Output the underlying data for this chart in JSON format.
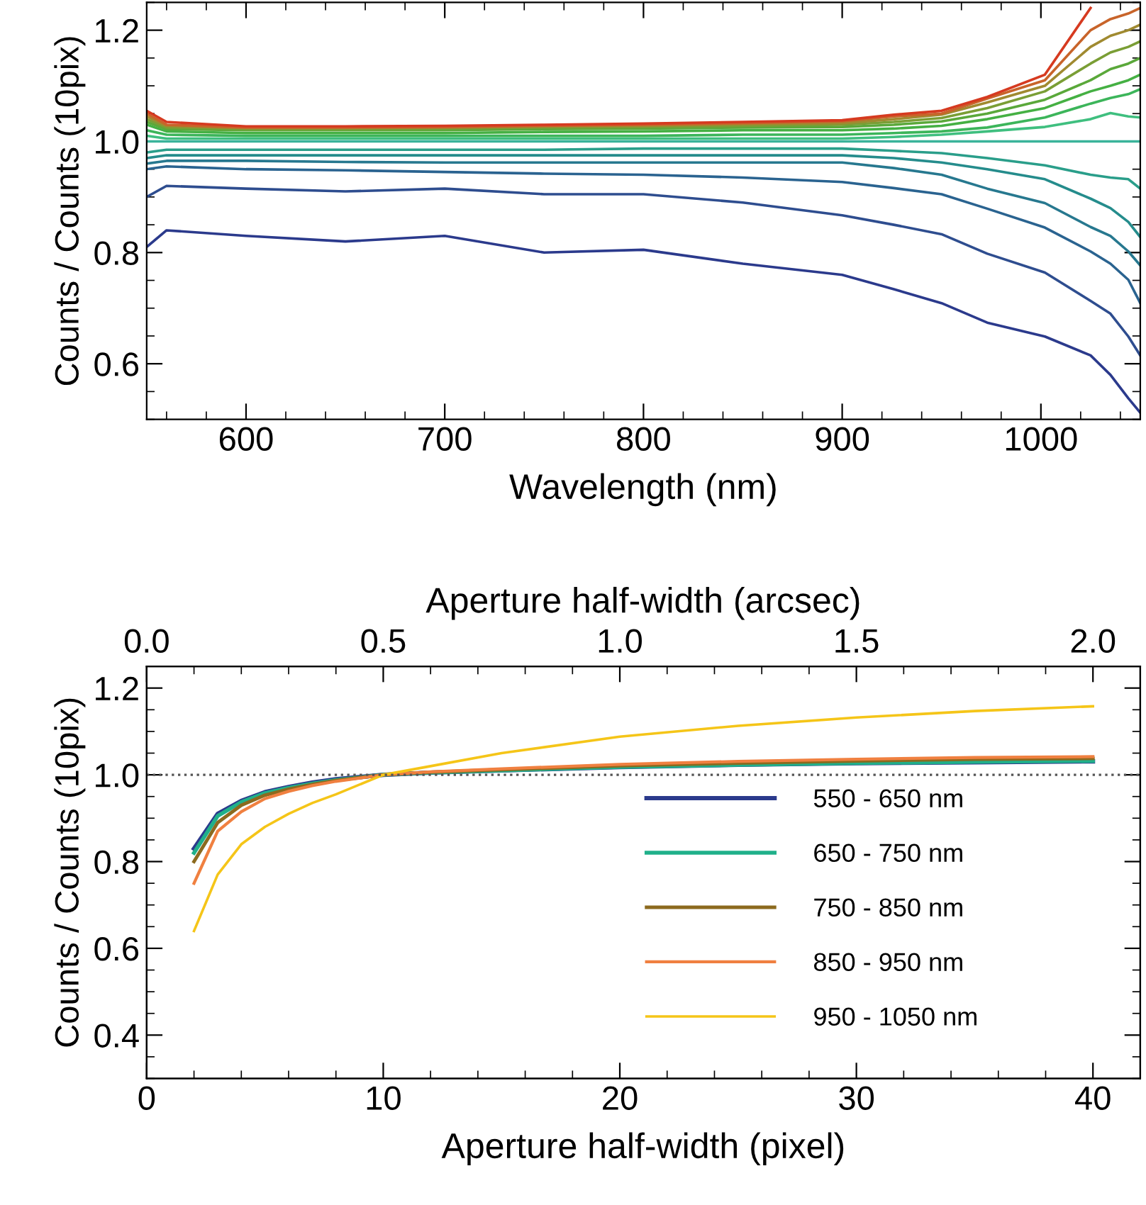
{
  "chart_data": [
    {
      "type": "line",
      "xlabel": "Wavelength (nm)",
      "ylabel": "Counts / Counts (10pix)",
      "xlim": [
        550,
        1050
      ],
      "ylim": [
        0.5,
        1.25
      ],
      "xticks": [
        600,
        700,
        800,
        900,
        1000
      ],
      "yticks": [
        {
          "value": 0.6,
          "label": "0.6"
        },
        {
          "value": 0.8,
          "label": "0.8"
        },
        {
          "value": 1.0,
          "label": "1.0"
        },
        {
          "value": 1.2,
          "label": "1.2"
        }
      ],
      "grid": false,
      "legend": false,
      "marker": "none",
      "line_style": "solid",
      "x": [
        550,
        560,
        600,
        650,
        700,
        750,
        800,
        850,
        900,
        926,
        950,
        973,
        1002,
        1025,
        1035,
        1044,
        1050
      ],
      "series": [
        {
          "color": "#2b3a8c",
          "values": [
            0.81,
            0.84,
            0.83,
            0.82,
            0.83,
            0.8,
            0.805,
            0.78,
            0.76,
            0.734,
            0.709,
            0.674,
            0.649,
            0.615,
            0.58,
            0.538,
            0.512
          ]
        },
        {
          "color": "#2e4d8f",
          "values": [
            0.9,
            0.92,
            0.915,
            0.91,
            0.915,
            0.905,
            0.905,
            0.89,
            0.867,
            0.85,
            0.833,
            0.798,
            0.764,
            0.713,
            0.69,
            0.649,
            0.615
          ]
        },
        {
          "color": "#2a6390",
          "values": [
            0.95,
            0.955,
            0.95,
            0.948,
            0.945,
            0.942,
            0.94,
            0.935,
            0.927,
            0.916,
            0.905,
            0.879,
            0.845,
            0.802,
            0.78,
            0.751,
            0.709
          ]
        },
        {
          "color": "#27788f",
          "values": [
            0.96,
            0.965,
            0.965,
            0.963,
            0.962,
            0.962,
            0.962,
            0.962,
            0.962,
            0.952,
            0.94,
            0.915,
            0.889,
            0.846,
            0.83,
            0.802,
            0.777
          ]
        },
        {
          "color": "#258c8c",
          "values": [
            0.97,
            0.975,
            0.975,
            0.975,
            0.975,
            0.975,
            0.975,
            0.975,
            0.975,
            0.97,
            0.962,
            0.95,
            0.932,
            0.897,
            0.88,
            0.855,
            0.828
          ]
        },
        {
          "color": "#2a9e8a",
          "values": [
            0.98,
            0.985,
            0.985,
            0.985,
            0.985,
            0.985,
            0.987,
            0.987,
            0.987,
            0.983,
            0.979,
            0.97,
            0.957,
            0.94,
            0.935,
            0.932,
            0.915
          ]
        },
        {
          "color": "#3ab39a",
          "values": [
            1.0,
            1.0,
            1.0,
            1.0,
            1.0,
            1.0,
            1.0,
            1.0,
            1.0,
            1.0,
            1.0,
            1.0,
            1.0,
            1.0,
            1.0,
            1.0,
            1.0
          ]
        },
        {
          "color": "#3fbf7f",
          "values": [
            1.01,
            1.005,
            1.005,
            1.005,
            1.005,
            1.005,
            1.005,
            1.005,
            1.005,
            1.008,
            1.012,
            1.018,
            1.026,
            1.04,
            1.051,
            1.045,
            1.043
          ]
        },
        {
          "color": "#3cb55a",
          "values": [
            1.02,
            1.012,
            1.01,
            1.01,
            1.01,
            1.01,
            1.01,
            1.012,
            1.012,
            1.015,
            1.018,
            1.025,
            1.043,
            1.068,
            1.078,
            1.085,
            1.094
          ]
        },
        {
          "color": "#45b043",
          "values": [
            1.03,
            1.018,
            1.015,
            1.015,
            1.015,
            1.017,
            1.018,
            1.02,
            1.02,
            1.023,
            1.028,
            1.04,
            1.06,
            1.09,
            1.1,
            1.11,
            1.12
          ]
        },
        {
          "color": "#5aa83a",
          "values": [
            1.035,
            1.022,
            1.02,
            1.02,
            1.02,
            1.022,
            1.023,
            1.025,
            1.026,
            1.03,
            1.036,
            1.05,
            1.075,
            1.11,
            1.13,
            1.14,
            1.15
          ]
        },
        {
          "color": "#7a9e35",
          "values": [
            1.04,
            1.025,
            1.022,
            1.022,
            1.023,
            1.025,
            1.026,
            1.028,
            1.03,
            1.035,
            1.042,
            1.06,
            1.09,
            1.14,
            1.16,
            1.17,
            1.18
          ]
        },
        {
          "color": "#a08a30",
          "values": [
            1.045,
            1.028,
            1.024,
            1.024,
            1.025,
            1.027,
            1.028,
            1.031,
            1.033,
            1.04,
            1.048,
            1.07,
            1.1,
            1.17,
            1.19,
            1.2,
            1.21
          ]
        },
        {
          "color": "#c8642a",
          "values": [
            1.05,
            1.03,
            1.025,
            1.025,
            1.026,
            1.028,
            1.03,
            1.033,
            1.036,
            1.045,
            1.05,
            1.077,
            1.11,
            1.2,
            1.22,
            1.23,
            1.24
          ]
        },
        {
          "color": "#d63a20",
          "values": [
            1.055,
            1.035,
            1.027,
            1.027,
            1.028,
            1.03,
            1.032,
            1.035,
            1.038,
            1.048,
            1.055,
            1.08,
            1.12,
            1.24,
            null,
            null,
            null
          ]
        }
      ]
    },
    {
      "type": "line",
      "xlabel": "Aperture half-width (pixel)",
      "x2label": "Aperture half-width (arcsec)",
      "ylabel": "Counts / Counts (10pix)",
      "xlim": [
        0,
        42
      ],
      "x2lim": [
        0,
        2.1
      ],
      "ylim": [
        0.3,
        1.25
      ],
      "xticks": [
        0,
        10,
        20,
        30,
        40
      ],
      "x2ticks": [
        {
          "value": 0,
          "label": "0.0"
        },
        {
          "value": 0.5,
          "label": "0.5"
        },
        {
          "value": 1.0,
          "label": "1.0"
        },
        {
          "value": 1.5,
          "label": "1.5"
        },
        {
          "value": 2.0,
          "label": "2.0"
        }
      ],
      "yticks": [
        {
          "value": 0.4,
          "label": "0.4"
        },
        {
          "value": 0.6,
          "label": "0.6"
        },
        {
          "value": 0.8,
          "label": "0.8"
        },
        {
          "value": 1.0,
          "label": "1.0"
        },
        {
          "value": 1.2,
          "label": "1.2"
        }
      ],
      "grid": false,
      "legend": "bottom right",
      "marker": "none",
      "line_style": "solid",
      "ref_lines": [
        {
          "axis": "y",
          "value": 1.0,
          "color": "#555555",
          "line_style": "dotted"
        }
      ],
      "x": [
        2,
        3,
        4,
        5,
        6,
        7,
        8,
        10,
        12,
        15,
        20,
        25,
        30,
        35,
        40
      ],
      "series": [
        {
          "name": "550 - 650 nm",
          "color": "#2b3a8c",
          "values": [
            0.83,
            0.91,
            0.94,
            0.96,
            0.972,
            0.982,
            0.99,
            1.0,
            1.005,
            1.01,
            1.018,
            1.023,
            1.027,
            1.029,
            1.031
          ]
        },
        {
          "name": "650 - 750 nm",
          "color": "#20b08a",
          "values": [
            0.82,
            0.905,
            0.937,
            0.958,
            0.97,
            0.98,
            0.988,
            1.0,
            1.005,
            1.01,
            1.018,
            1.023,
            1.027,
            1.03,
            1.032
          ]
        },
        {
          "name": "750 - 850 nm",
          "color": "#8c6a1e",
          "values": [
            0.8,
            0.89,
            0.93,
            0.953,
            0.967,
            0.978,
            0.987,
            1.0,
            1.006,
            1.012,
            1.021,
            1.027,
            1.032,
            1.036,
            1.038
          ]
        },
        {
          "name": "850 - 950 nm",
          "color": "#f08040",
          "values": [
            0.75,
            0.87,
            0.915,
            0.945,
            0.962,
            0.975,
            0.985,
            1.0,
            1.007,
            1.014,
            1.024,
            1.031,
            1.036,
            1.04,
            1.042
          ]
        },
        {
          "name": "950 - 1050 nm",
          "color": "#f5c518",
          "values": [
            0.64,
            0.77,
            0.84,
            0.88,
            0.91,
            0.935,
            0.955,
            1.0,
            1.02,
            1.05,
            1.088,
            1.113,
            1.132,
            1.147,
            1.158
          ]
        }
      ]
    }
  ]
}
